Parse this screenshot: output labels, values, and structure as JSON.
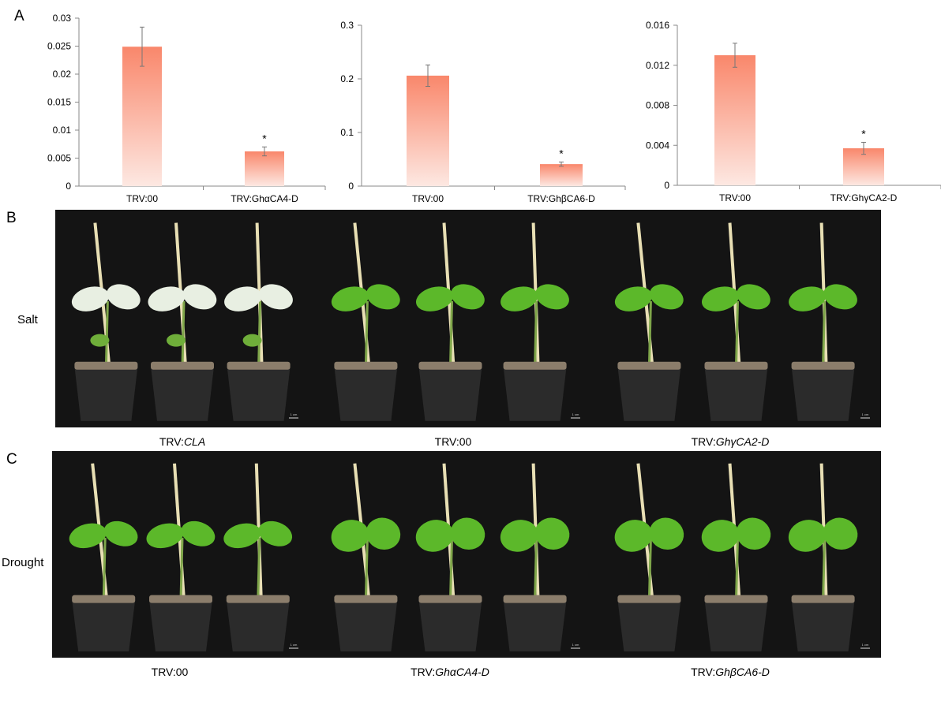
{
  "panels": {
    "a": "A",
    "b": "B",
    "c": "C"
  },
  "colors": {
    "bar_top": "#f9876b",
    "bar_bottom": "#fde8e2",
    "photo_bg": "#141414",
    "leaf": "#5cb82a",
    "pot": "#2b2b2b",
    "soil": "#8b7d6b",
    "stake": "#e8dfb4"
  },
  "chart_data": [
    {
      "type": "bar",
      "categories": [
        "TRV:00",
        "TRV:GhαCA4-D"
      ],
      "values": [
        0.0249,
        0.0062
      ],
      "errors": [
        0.0035,
        0.0008
      ],
      "significance": [
        "",
        "*"
      ],
      "ylim": [
        0,
        0.03
      ],
      "yticks": [
        "0",
        "0.005",
        "0.01",
        "0.015",
        "0.02",
        "0.025",
        "0.03"
      ],
      "ytick_values": [
        0,
        0.005,
        0.01,
        0.015,
        0.02,
        0.025,
        0.03
      ]
    },
    {
      "type": "bar",
      "categories": [
        "TRV:00",
        "TRV:GhβCA6-D"
      ],
      "values": [
        0.206,
        0.041
      ],
      "errors": [
        0.02,
        0.004
      ],
      "significance": [
        "",
        "*"
      ],
      "ylim": [
        0,
        0.3
      ],
      "yticks": [
        "0",
        "0.1",
        "0.2",
        "0.3"
      ],
      "ytick_values": [
        0,
        0.1,
        0.2,
        0.3
      ]
    },
    {
      "type": "bar",
      "categories": [
        "TRV:00",
        "TRV:GhγCA2-D"
      ],
      "values": [
        0.013,
        0.0037
      ],
      "errors": [
        0.0012,
        0.0006
      ],
      "significance": [
        "",
        "*"
      ],
      "ylim": [
        0,
        0.016
      ],
      "yticks": [
        "0",
        "0.004",
        "0.008",
        "0.012",
        "0.016"
      ],
      "ytick_values": [
        0,
        0.004,
        0.008,
        0.012,
        0.016
      ]
    }
  ],
  "rows": {
    "salt": {
      "label": "Salt",
      "captions": [
        {
          "prefix": "TRV:",
          "gene": "CLA"
        },
        {
          "prefix": "TRV:00",
          "gene": ""
        },
        {
          "prefix": "TRV:",
          "gene": "GhγCA2-D"
        }
      ]
    },
    "drought": {
      "label": "Drought",
      "captions": [
        {
          "prefix": "TRV:00",
          "gene": ""
        },
        {
          "prefix": "TRV:",
          "gene": "GhαCA4-D"
        },
        {
          "prefix": "TRV:",
          "gene": "GhβCA6-D"
        }
      ]
    }
  },
  "scale_bar": "1 cm"
}
